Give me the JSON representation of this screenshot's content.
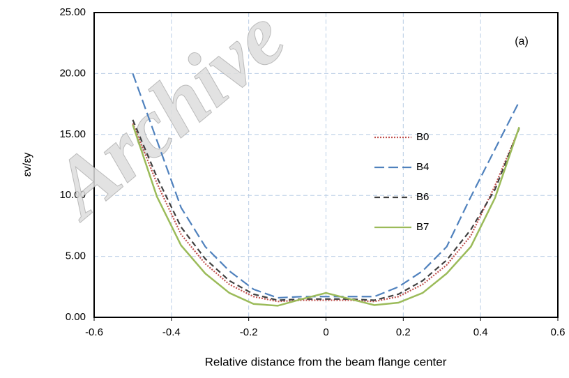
{
  "chart_data": {
    "type": "line",
    "watermark": "Archive",
    "annotation": "(a)",
    "x_label": "Relative distance from the beam flange center",
    "y_label": "εv/εy",
    "x": [
      -0.5,
      -0.4375,
      -0.375,
      -0.3125,
      -0.25,
      -0.1875,
      -0.125,
      -0.0625,
      0,
      0.0625,
      0.125,
      0.1875,
      0.25,
      0.3125,
      0.375,
      0.4375,
      0.5
    ],
    "series": [
      {
        "name": "B0",
        "color": "#c0504d",
        "dash": "dotted",
        "values": [
          15.9,
          11.0,
          6.8,
          4.4,
          2.7,
          1.7,
          1.3,
          1.4,
          1.4,
          1.4,
          1.3,
          1.7,
          2.7,
          4.3,
          6.7,
          10.8,
          15.5
        ]
      },
      {
        "name": "B4",
        "color": "#4f81bd",
        "dash": "long-dash",
        "values": [
          20.0,
          14.5,
          9.0,
          5.8,
          3.8,
          2.3,
          1.6,
          1.7,
          1.7,
          1.7,
          1.7,
          2.5,
          3.8,
          5.8,
          9.9,
          13.8,
          17.7
        ]
      },
      {
        "name": "B6",
        "color": "#404040",
        "dash": "dash",
        "values": [
          16.2,
          11.5,
          7.4,
          4.8,
          3.0,
          1.9,
          1.4,
          1.5,
          1.5,
          1.5,
          1.4,
          1.9,
          3.0,
          4.7,
          7.2,
          10.5,
          15.5
        ]
      },
      {
        "name": "B7",
        "color": "#9bbb59",
        "dash": "solid",
        "values": [
          15.8,
          9.9,
          5.9,
          3.6,
          2.0,
          1.1,
          0.95,
          1.5,
          2.0,
          1.5,
          1.0,
          1.2,
          2.0,
          3.6,
          5.8,
          9.8,
          15.6
        ]
      }
    ],
    "xlim": [
      -0.6,
      0.6
    ],
    "xticks": [
      -0.6,
      -0.4,
      -0.2,
      0,
      0.2,
      0.4,
      0.6
    ],
    "ylim": [
      0,
      25
    ],
    "yticks": [
      {
        "value": 0,
        "label": "0.00"
      },
      {
        "value": 5,
        "label": "5.00"
      },
      {
        "value": 10,
        "label": "10.00"
      },
      {
        "value": 15,
        "label": "15.00"
      },
      {
        "value": 20,
        "label": "20.00"
      },
      {
        "value": 25,
        "label": "25.00"
      }
    ],
    "grid": true,
    "legend": "center-right"
  }
}
